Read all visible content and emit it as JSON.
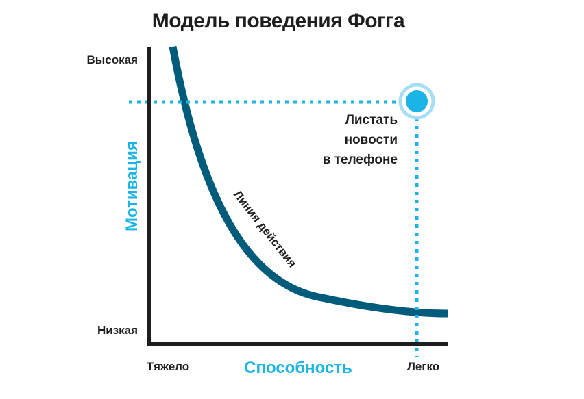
{
  "title": "Модель поведения Фогга",
  "y_axis": {
    "title": "Мотивация",
    "high_label": "Высокая",
    "low_label": "Низкая"
  },
  "x_axis": {
    "title": "Способность",
    "left_label": "Тяжело",
    "right_label": "Легко"
  },
  "curve_label": "Линия действия",
  "point": {
    "label_lines": [
      "Листать",
      "новости",
      "в телефоне"
    ]
  },
  "colors": {
    "text": "#1e1e1e",
    "accent": "#1ab4e6",
    "curve": "#005c7a",
    "axis": "#1e1e1e",
    "point_ring": "#a8def3"
  }
}
